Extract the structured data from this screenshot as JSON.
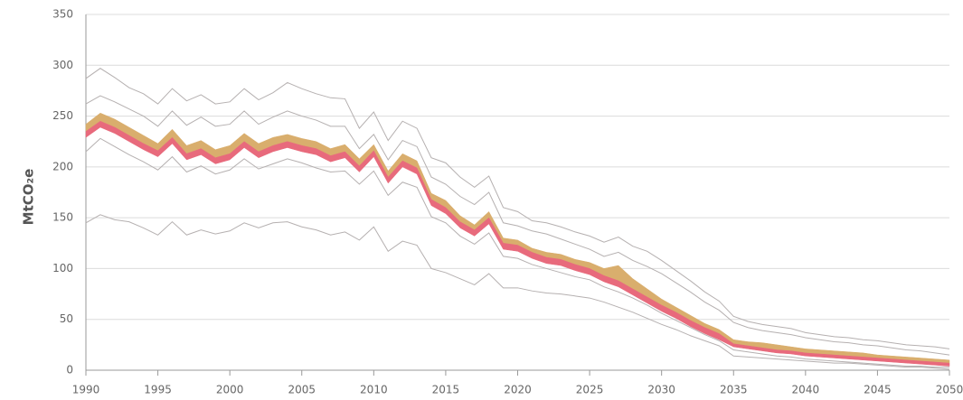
{
  "chart_data": {
    "type": "line",
    "y_label": "MtCO₂e",
    "x": [
      1990,
      1991,
      1992,
      1993,
      1994,
      1995,
      1996,
      1997,
      1998,
      1999,
      2000,
      2001,
      2002,
      2003,
      2004,
      2005,
      2006,
      2007,
      2008,
      2009,
      2010,
      2011,
      2012,
      2013,
      2014,
      2015,
      2016,
      2017,
      2018,
      2019,
      2020,
      2021,
      2022,
      2023,
      2024,
      2025,
      2026,
      2027,
      2028,
      2029,
      2030,
      2031,
      2032,
      2033,
      2034,
      2035,
      2036,
      2037,
      2038,
      2039,
      2040,
      2041,
      2042,
      2043,
      2044,
      2045,
      2046,
      2047,
      2048,
      2049,
      2050
    ],
    "xlim": [
      1990,
      2050
    ],
    "xticks": [
      1990,
      1995,
      2000,
      2005,
      2010,
      2015,
      2020,
      2025,
      2030,
      2035,
      2040,
      2045,
      2050
    ],
    "ylim": [
      0,
      350
    ],
    "yticks": [
      0,
      50,
      100,
      150,
      200,
      250,
      300,
      350
    ],
    "grid": true,
    "series": [
      {
        "color": "#b5b0b0",
        "values": [
          287,
          297,
          288,
          278,
          272,
          262,
          277,
          265,
          271,
          262,
          264,
          277,
          266,
          273,
          283,
          277,
          272,
          268,
          267,
          238,
          254,
          226,
          245,
          238,
          209,
          204,
          190,
          180,
          191,
          160,
          156,
          147,
          145,
          141,
          136,
          132,
          126,
          131,
          122,
          117,
          108,
          98,
          88,
          77,
          68,
          53,
          48,
          45,
          43,
          41,
          37,
          35,
          33,
          32,
          30,
          29,
          27,
          25,
          24,
          23,
          21
        ]
      },
      {
        "color": "#b5b0b0",
        "values": [
          262,
          270,
          264,
          257,
          250,
          240,
          255,
          241,
          249,
          240,
          242,
          255,
          242,
          249,
          255,
          250,
          246,
          240,
          240,
          218,
          232,
          207,
          226,
          220,
          190,
          183,
          171,
          163,
          175,
          145,
          142,
          137,
          134,
          129,
          124,
          119,
          112,
          116,
          108,
          102,
          95,
          86,
          77,
          67,
          59,
          47,
          42,
          39,
          37,
          35,
          32,
          30,
          28,
          27,
          25,
          24,
          22,
          20,
          19,
          17,
          15
        ]
      },
      {
        "color": "#b5b0b0",
        "values": [
          215,
          228,
          220,
          212,
          205,
          197,
          210,
          195,
          201,
          193,
          197,
          208,
          198,
          203,
          208,
          204,
          199,
          195,
          196,
          183,
          196,
          172,
          185,
          180,
          151,
          145,
          132,
          124,
          135,
          112,
          110,
          104,
          100,
          96,
          92,
          89,
          82,
          77,
          71,
          64,
          56,
          49,
          42,
          35,
          29,
          20,
          18,
          16,
          14,
          13,
          11,
          10,
          9,
          8,
          7,
          6,
          5,
          4,
          4,
          3,
          3
        ]
      },
      {
        "color": "#b5b0b0",
        "values": [
          145,
          153,
          148,
          146,
          140,
          133,
          146,
          133,
          138,
          134,
          137,
          145,
          140,
          145,
          146,
          141,
          138,
          133,
          136,
          128,
          141,
          117,
          127,
          123,
          100,
          96,
          90,
          84,
          95,
          81,
          81,
          78,
          76,
          75,
          73,
          71,
          67,
          62,
          57,
          51,
          45,
          40,
          34,
          29,
          24,
          14,
          13,
          12,
          11,
          10,
          9,
          8,
          7,
          7,
          6,
          5,
          4,
          3,
          3,
          2,
          1
        ]
      }
    ],
    "bands": [
      {
        "color": "#d9ae6d",
        "low": [
          235,
          245,
          239,
          231,
          223,
          216,
          229,
          213,
          218,
          209,
          213,
          225,
          215,
          221,
          225,
          221,
          218,
          211,
          215,
          201,
          216,
          190,
          206,
          199,
          168,
          160,
          146,
          138,
          150,
          125,
          123,
          116,
          111,
          109,
          104,
          100,
          93,
          88,
          80,
          72,
          64,
          57,
          49,
          42,
          36,
          26,
          24,
          22,
          20,
          19,
          17,
          16,
          15,
          14,
          13,
          12,
          11,
          10,
          9,
          8,
          7
        ],
        "high": [
          242,
          253,
          247,
          239,
          231,
          223,
          237,
          221,
          226,
          217,
          221,
          233,
          223,
          229,
          232,
          228,
          225,
          218,
          222,
          208,
          222,
          196,
          213,
          206,
          174,
          167,
          152,
          143,
          156,
          130,
          128,
          120,
          116,
          114,
          109,
          106,
          100,
          103,
          90,
          80,
          70,
          62,
          54,
          46,
          40,
          30,
          28,
          27,
          25,
          23,
          21,
          20,
          19,
          18,
          17,
          15,
          14,
          13,
          12,
          11,
          10
        ]
      },
      {
        "color": "#e86a7c",
        "low": [
          229,
          239,
          233,
          225,
          217,
          210,
          223,
          207,
          212,
          203,
          207,
          219,
          209,
          215,
          219,
          215,
          212,
          205,
          209,
          195,
          210,
          184,
          200,
          193,
          162,
          154,
          140,
          132,
          144,
          119,
          117,
          110,
          105,
          103,
          98,
          94,
          87,
          82,
          74,
          66,
          58,
          51,
          43,
          36,
          30,
          23,
          21,
          19,
          17,
          16,
          14,
          13,
          12,
          11,
          10,
          9,
          8,
          7,
          6,
          5,
          4
        ],
        "high": [
          235,
          245,
          239,
          231,
          223,
          216,
          229,
          213,
          218,
          209,
          213,
          225,
          215,
          221,
          225,
          221,
          218,
          211,
          215,
          201,
          216,
          190,
          206,
          199,
          168,
          160,
          146,
          138,
          150,
          125,
          123,
          116,
          111,
          109,
          104,
          100,
          93,
          88,
          80,
          72,
          64,
          57,
          49,
          42,
          36,
          26,
          24,
          22,
          20,
          19,
          17,
          16,
          15,
          14,
          13,
          12,
          11,
          10,
          9,
          8,
          7
        ]
      }
    ]
  }
}
